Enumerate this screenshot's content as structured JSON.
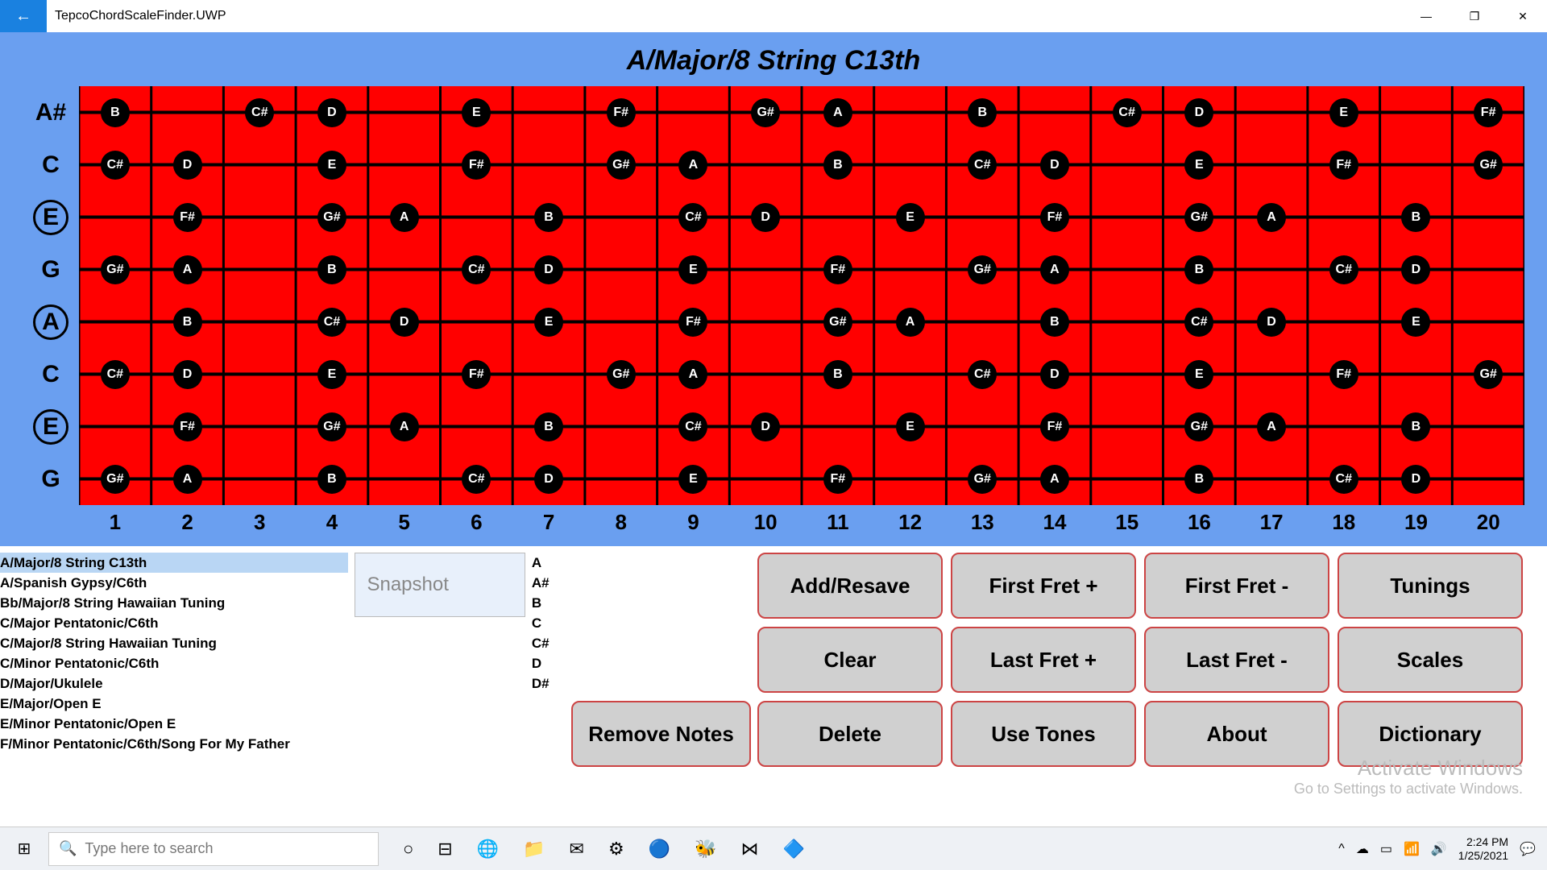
{
  "window": {
    "title": "TepcoChordScaleFinder.UWP"
  },
  "heading": "A/Major/8 String C13th",
  "strings": [
    {
      "label": "A#",
      "ring": false
    },
    {
      "label": "C",
      "ring": false
    },
    {
      "label": "E",
      "ring": true
    },
    {
      "label": "G",
      "ring": false
    },
    {
      "label": "A",
      "ring": true
    },
    {
      "label": "C",
      "ring": false
    },
    {
      "label": "E",
      "ring": true
    },
    {
      "label": "G",
      "ring": false
    }
  ],
  "frets": 20,
  "fret_nums": [
    "1",
    "2",
    "3",
    "4",
    "5",
    "6",
    "7",
    "8",
    "9",
    "10",
    "11",
    "12",
    "13",
    "14",
    "15",
    "16",
    "17",
    "18",
    "19",
    "20"
  ],
  "notes": [
    {
      "s": 0,
      "f": 1,
      "t": "B"
    },
    {
      "s": 0,
      "f": 3,
      "t": "C#"
    },
    {
      "s": 0,
      "f": 4,
      "t": "D"
    },
    {
      "s": 0,
      "f": 6,
      "t": "E"
    },
    {
      "s": 0,
      "f": 8,
      "t": "F#"
    },
    {
      "s": 0,
      "f": 10,
      "t": "G#"
    },
    {
      "s": 0,
      "f": 11,
      "t": "A"
    },
    {
      "s": 0,
      "f": 13,
      "t": "B"
    },
    {
      "s": 0,
      "f": 15,
      "t": "C#"
    },
    {
      "s": 0,
      "f": 16,
      "t": "D"
    },
    {
      "s": 0,
      "f": 18,
      "t": "E"
    },
    {
      "s": 0,
      "f": 20,
      "t": "F#"
    },
    {
      "s": 1,
      "f": 1,
      "t": "C#"
    },
    {
      "s": 1,
      "f": 2,
      "t": "D"
    },
    {
      "s": 1,
      "f": 4,
      "t": "E"
    },
    {
      "s": 1,
      "f": 6,
      "t": "F#"
    },
    {
      "s": 1,
      "f": 8,
      "t": "G#"
    },
    {
      "s": 1,
      "f": 9,
      "t": "A"
    },
    {
      "s": 1,
      "f": 11,
      "t": "B"
    },
    {
      "s": 1,
      "f": 13,
      "t": "C#"
    },
    {
      "s": 1,
      "f": 14,
      "t": "D"
    },
    {
      "s": 1,
      "f": 16,
      "t": "E"
    },
    {
      "s": 1,
      "f": 18,
      "t": "F#"
    },
    {
      "s": 1,
      "f": 20,
      "t": "G#"
    },
    {
      "s": 2,
      "f": 2,
      "t": "F#"
    },
    {
      "s": 2,
      "f": 4,
      "t": "G#"
    },
    {
      "s": 2,
      "f": 5,
      "t": "A"
    },
    {
      "s": 2,
      "f": 7,
      "t": "B"
    },
    {
      "s": 2,
      "f": 9,
      "t": "C#"
    },
    {
      "s": 2,
      "f": 10,
      "t": "D"
    },
    {
      "s": 2,
      "f": 12,
      "t": "E"
    },
    {
      "s": 2,
      "f": 14,
      "t": "F#"
    },
    {
      "s": 2,
      "f": 16,
      "t": "G#"
    },
    {
      "s": 2,
      "f": 17,
      "t": "A"
    },
    {
      "s": 2,
      "f": 19,
      "t": "B"
    },
    {
      "s": 3,
      "f": 1,
      "t": "G#"
    },
    {
      "s": 3,
      "f": 2,
      "t": "A"
    },
    {
      "s": 3,
      "f": 4,
      "t": "B"
    },
    {
      "s": 3,
      "f": 6,
      "t": "C#"
    },
    {
      "s": 3,
      "f": 7,
      "t": "D"
    },
    {
      "s": 3,
      "f": 9,
      "t": "E"
    },
    {
      "s": 3,
      "f": 11,
      "t": "F#"
    },
    {
      "s": 3,
      "f": 13,
      "t": "G#"
    },
    {
      "s": 3,
      "f": 14,
      "t": "A"
    },
    {
      "s": 3,
      "f": 16,
      "t": "B"
    },
    {
      "s": 3,
      "f": 18,
      "t": "C#"
    },
    {
      "s": 3,
      "f": 19,
      "t": "D"
    },
    {
      "s": 4,
      "f": 2,
      "t": "B"
    },
    {
      "s": 4,
      "f": 4,
      "t": "C#"
    },
    {
      "s": 4,
      "f": 5,
      "t": "D"
    },
    {
      "s": 4,
      "f": 7,
      "t": "E"
    },
    {
      "s": 4,
      "f": 9,
      "t": "F#"
    },
    {
      "s": 4,
      "f": 11,
      "t": "G#"
    },
    {
      "s": 4,
      "f": 12,
      "t": "A"
    },
    {
      "s": 4,
      "f": 14,
      "t": "B"
    },
    {
      "s": 4,
      "f": 16,
      "t": "C#"
    },
    {
      "s": 4,
      "f": 17,
      "t": "D"
    },
    {
      "s": 4,
      "f": 19,
      "t": "E"
    },
    {
      "s": 5,
      "f": 1,
      "t": "C#"
    },
    {
      "s": 5,
      "f": 2,
      "t": "D"
    },
    {
      "s": 5,
      "f": 4,
      "t": "E"
    },
    {
      "s": 5,
      "f": 6,
      "t": "F#"
    },
    {
      "s": 5,
      "f": 8,
      "t": "G#"
    },
    {
      "s": 5,
      "f": 9,
      "t": "A"
    },
    {
      "s": 5,
      "f": 11,
      "t": "B"
    },
    {
      "s": 5,
      "f": 13,
      "t": "C#"
    },
    {
      "s": 5,
      "f": 14,
      "t": "D"
    },
    {
      "s": 5,
      "f": 16,
      "t": "E"
    },
    {
      "s": 5,
      "f": 18,
      "t": "F#"
    },
    {
      "s": 5,
      "f": 20,
      "t": "G#"
    },
    {
      "s": 6,
      "f": 2,
      "t": "F#"
    },
    {
      "s": 6,
      "f": 4,
      "t": "G#"
    },
    {
      "s": 6,
      "f": 5,
      "t": "A"
    },
    {
      "s": 6,
      "f": 7,
      "t": "B"
    },
    {
      "s": 6,
      "f": 9,
      "t": "C#"
    },
    {
      "s": 6,
      "f": 10,
      "t": "D"
    },
    {
      "s": 6,
      "f": 12,
      "t": "E"
    },
    {
      "s": 6,
      "f": 14,
      "t": "F#"
    },
    {
      "s": 6,
      "f": 16,
      "t": "G#"
    },
    {
      "s": 6,
      "f": 17,
      "t": "A"
    },
    {
      "s": 6,
      "f": 19,
      "t": "B"
    },
    {
      "s": 7,
      "f": 1,
      "t": "G#"
    },
    {
      "s": 7,
      "f": 2,
      "t": "A"
    },
    {
      "s": 7,
      "f": 4,
      "t": "B"
    },
    {
      "s": 7,
      "f": 6,
      "t": "C#"
    },
    {
      "s": 7,
      "f": 7,
      "t": "D"
    },
    {
      "s": 7,
      "f": 9,
      "t": "E"
    },
    {
      "s": 7,
      "f": 11,
      "t": "F#"
    },
    {
      "s": 7,
      "f": 13,
      "t": "G#"
    },
    {
      "s": 7,
      "f": 14,
      "t": "A"
    },
    {
      "s": 7,
      "f": 16,
      "t": "B"
    },
    {
      "s": 7,
      "f": 18,
      "t": "C#"
    },
    {
      "s": 7,
      "f": 19,
      "t": "D"
    }
  ],
  "scale_list": [
    "A/Major/8 String C13th",
    "A/Spanish Gypsy/C6th",
    "Bb/Major/8 String Hawaiian Tuning",
    "C/Major Pentatonic/C6th",
    "C/Major/8 String Hawaiian Tuning",
    "C/Minor Pentatonic/C6th",
    "D/Major/Ukulele",
    "E/Major/Open E",
    "E/Minor Pentatonic/Open E",
    "F/Minor Pentatonic/C6th/Song For My Father"
  ],
  "snapshot_label": "Snapshot",
  "note_column": [
    "A",
    "A#",
    "B",
    "C",
    "C#",
    "D",
    "D#"
  ],
  "buttons": {
    "remove": "Remove Notes",
    "grid": [
      "Add/Resave",
      "First Fret +",
      "First Fret -",
      "Tunings",
      "Clear",
      "Last Fret +",
      "Last Fret -",
      "Scales",
      "Delete",
      "Use Tones",
      "About",
      "Dictionary"
    ]
  },
  "watermark": {
    "line1": "Activate Windows",
    "line2": "Go to Settings to activate Windows."
  },
  "taskbar": {
    "search": "Type here to search",
    "time": "2:24 PM",
    "date": "1/25/2021"
  },
  "style": {
    "app_bg": "#6a9ff0",
    "fretboard_bg": "#ff0000",
    "note_bg": "#000000",
    "note_fg": "#ffffff",
    "btn_bg": "#d0d0d0",
    "btn_border": "#c44444",
    "sel_bg": "#b9d6f4"
  }
}
